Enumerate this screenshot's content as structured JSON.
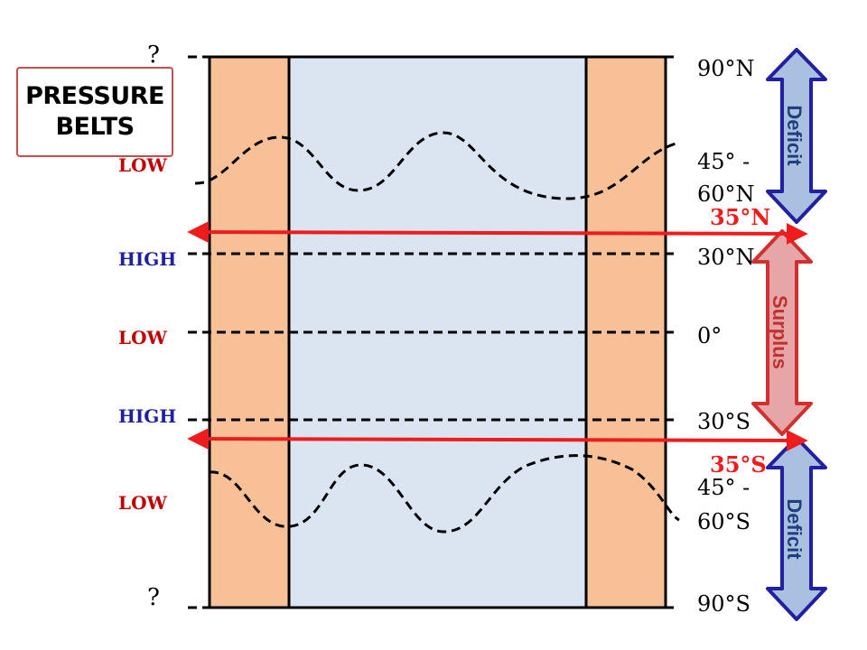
{
  "title": {
    "line1": "PRESSURE",
    "line2": "BELTS"
  },
  "unknown_marks": {
    "top": "?",
    "bottom": "?"
  },
  "pressure_labels": [
    {
      "text": "LOW",
      "color": "#c00000"
    },
    {
      "text": "HIGH",
      "color": "#1f1f9f"
    },
    {
      "text": "LOW",
      "color": "#c00000"
    },
    {
      "text": "HIGH",
      "color": "#1f1f9f"
    },
    {
      "text": "LOW",
      "color": "#c00000"
    }
  ],
  "latitude_labels": {
    "n90": "90°N",
    "n45a": "45° -",
    "n45b": "60°N",
    "n30": "30°N",
    "eq": "0°",
    "s30": "30°S",
    "s45a": "45° -",
    "s45b": "60°S",
    "s90": "90°S"
  },
  "boundary_labels": {
    "north": "35°N",
    "south": "35°S"
  },
  "arrows": {
    "top": {
      "label": "Deficit",
      "fill": "#a9c0e0",
      "stroke": "#2020a0",
      "text_color": "#1f3f7f"
    },
    "middle": {
      "label": "Surplus",
      "fill": "#e6a5a6",
      "stroke": "#d03030",
      "text_color": "#c03030"
    },
    "bottom": {
      "label": "Deficit",
      "fill": "#a9c0e0",
      "stroke": "#2020a0",
      "text_color": "#1f3f7f"
    }
  },
  "colors": {
    "land": "#f8c096",
    "ocean": "#dbe5f1",
    "boundary_red": "#ee1c1c"
  }
}
